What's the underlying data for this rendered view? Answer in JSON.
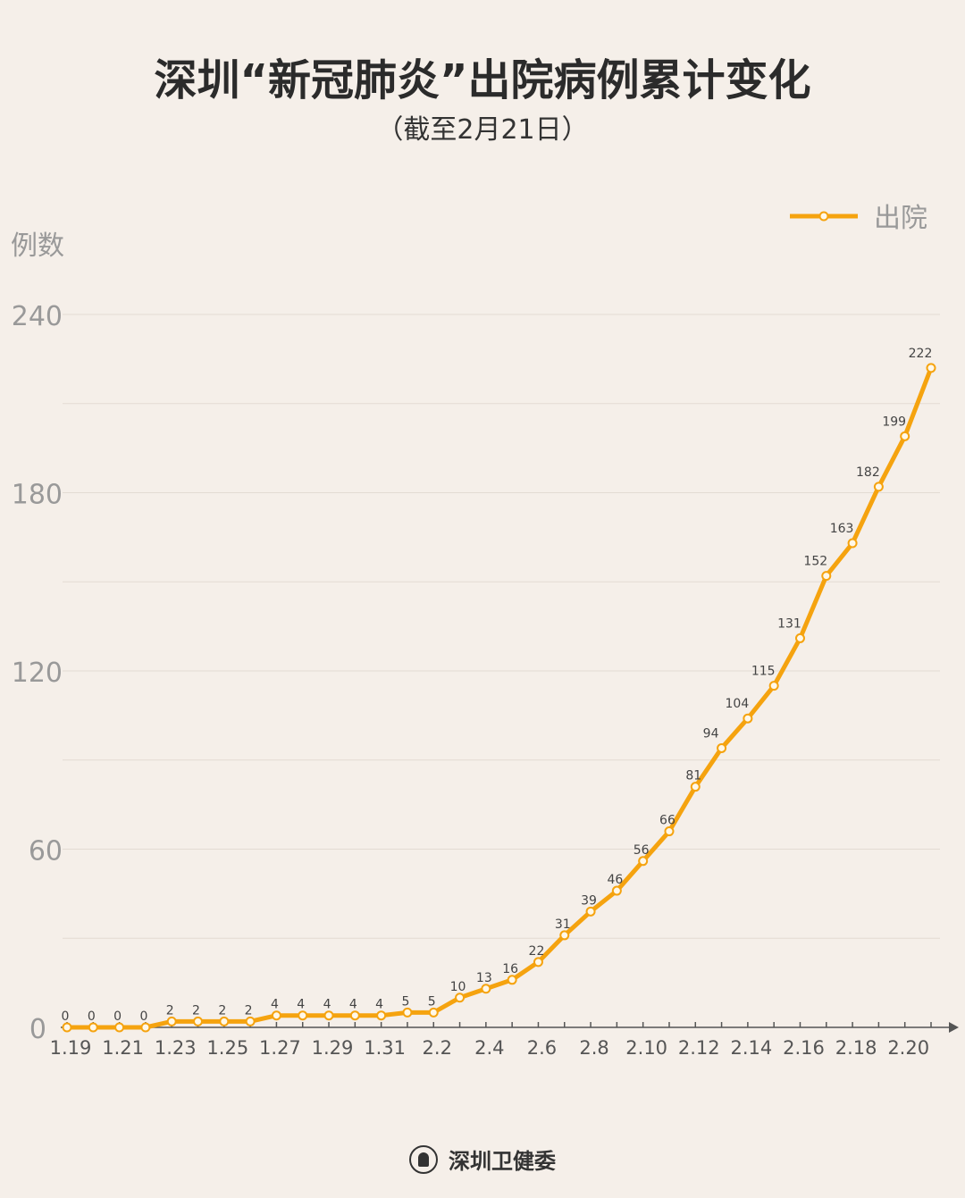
{
  "title": "深圳“新冠肺炎”出院病例累计变化",
  "subtitle": "（截至2月21日）",
  "footer": {
    "org": "深圳卫健委",
    "logo_icon": "shenzhen-health-commission-seal"
  },
  "chart_data": {
    "type": "line",
    "title": "深圳“新冠肺炎”出院病例累计变化",
    "subtitle": "（截至2月21日）",
    "ylabel": "例数",
    "xlabel": "",
    "ylim": [
      0,
      240
    ],
    "yticks": [
      0,
      60,
      120,
      180,
      240
    ],
    "grid": true,
    "legend_position": "top-right",
    "color": "#f5a30f",
    "x": [
      "1.19",
      "1.20",
      "1.21",
      "1.22",
      "1.23",
      "1.24",
      "1.25",
      "1.26",
      "1.27",
      "1.28",
      "1.29",
      "1.30",
      "1.31",
      "2.1",
      "2.2",
      "2.3",
      "2.4",
      "2.5",
      "2.6",
      "2.7",
      "2.8",
      "2.9",
      "2.10",
      "2.11",
      "2.12",
      "2.13",
      "2.14",
      "2.15",
      "2.16",
      "2.17",
      "2.18",
      "2.19",
      "2.20",
      "2.21"
    ],
    "xtick_labels": [
      "1.19",
      "1.21",
      "1.23",
      "1.25",
      "1.27",
      "1.29",
      "1.31",
      "2.2",
      "2.4",
      "2.6",
      "2.8",
      "2.10",
      "2.12",
      "2.14",
      "2.16",
      "2.18",
      "2.20"
    ],
    "series": [
      {
        "name": "出院",
        "values": [
          0,
          0,
          0,
          0,
          2,
          2,
          2,
          2,
          4,
          4,
          4,
          4,
          4,
          5,
          5,
          10,
          13,
          16,
          22,
          31,
          39,
          46,
          56,
          66,
          81,
          94,
          104,
          115,
          131,
          152,
          163,
          182,
          199,
          222
        ]
      }
    ]
  }
}
